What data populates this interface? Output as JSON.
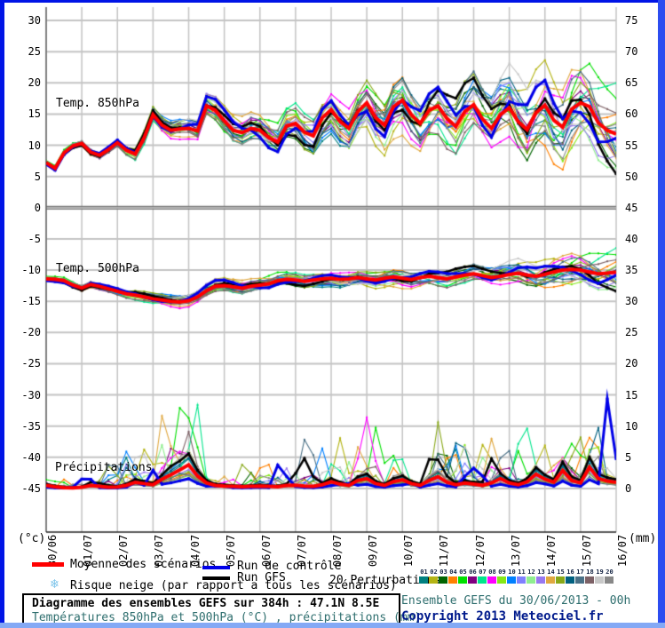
{
  "window": {
    "bg": "#ffffff",
    "border_color": "#0014e6",
    "border_right_color": "#2c4cf0",
    "border_bottom_color": "#84a9f5"
  },
  "chart_data": {
    "type": "line",
    "title": "Diagramme des ensembles GEFS sur 384h : 47.1N 8.5E",
    "subtitle": "Températures 850hPa et 500hPa (°C) , précipitations (mm)",
    "x_dates": [
      "30/06",
      "01/07",
      "02/07",
      "03/07",
      "04/07",
      "05/07",
      "06/07",
      "07/07",
      "08/07",
      "09/07",
      "10/07",
      "11/07",
      "12/07",
      "13/07",
      "14/07",
      "15/07",
      "16/07"
    ],
    "left_axis": {
      "unit_label": "(°c)",
      "ticks": [
        30,
        25,
        20,
        15,
        10,
        5,
        0,
        -5,
        -10,
        -15,
        -20,
        -25,
        -30,
        -35,
        -40,
        -45
      ],
      "range_note": "temperature °C"
    },
    "right_axis": {
      "unit_label": "(mm)",
      "ticks": [
        75,
        70,
        65,
        60,
        55,
        50,
        45,
        40,
        35,
        30,
        25,
        20,
        15,
        10,
        5,
        0
      ],
      "range_note": "precipitation mm"
    },
    "grid": true,
    "panels": [
      {
        "name": "temp850",
        "label": "Temp. 850hPa",
        "axis": "left",
        "mean": [
          7.2,
          6.3,
          8.8,
          9.9,
          10.3,
          8.9,
          8.4,
          9.3,
          10.4,
          9.2,
          8.6,
          11.2,
          14.9,
          13.2,
          12.4,
          12.6,
          12.7,
          12.3,
          16.3,
          15.6,
          13.9,
          12.4,
          12.0,
          12.7,
          12.4,
          11.2,
          10.5,
          13.1,
          13.5,
          12.1,
          11.5,
          14.4,
          15.7,
          13.8,
          12.7,
          15.4,
          16.8,
          14.4,
          13.2,
          16.2,
          17.2,
          14.9,
          13.5,
          15.6,
          16.3,
          14.3,
          13.0,
          15.4,
          16.5,
          14.2,
          12.7,
          14.9,
          16.0,
          13.8,
          12.5,
          15.2,
          16.4,
          14.0,
          12.9,
          15.8,
          16.8,
          16.2,
          13.6,
          12.4,
          11.8
        ],
        "spread": [
          0.25,
          0.5,
          1.2,
          1.8,
          2.4,
          3.0,
          3.5,
          4.2,
          5.0
        ]
      },
      {
        "name": "temp500",
        "label": "Temp. 500hPa",
        "axis": "left",
        "mean": [
          -11.4,
          -11.5,
          -11.7,
          -12.4,
          -12.9,
          -12.3,
          -12.6,
          -13.0,
          -13.4,
          -13.8,
          -14.0,
          -14.3,
          -14.6,
          -14.8,
          -15.0,
          -15.1,
          -14.9,
          -14.3,
          -13.3,
          -12.6,
          -12.5,
          -12.7,
          -12.9,
          -12.6,
          -12.4,
          -12.2,
          -11.7,
          -11.5,
          -11.6,
          -11.8,
          -11.6,
          -11.4,
          -11.3,
          -11.5,
          -11.4,
          -11.2,
          -11.4,
          -11.6,
          -11.3,
          -11.1,
          -11.3,
          -11.5,
          -11.2,
          -11.0,
          -11.2,
          -11.4,
          -11.1,
          -10.8,
          -10.6,
          -10.9,
          -11.2,
          -11.0,
          -10.7,
          -10.5,
          -10.8,
          -11.0,
          -10.7,
          -10.3,
          -10.0,
          -9.9,
          -10.0,
          -10.3,
          -10.6,
          -10.5,
          -10.3
        ],
        "spread": [
          0.3,
          0.5,
          0.7,
          0.8,
          0.8,
          0.9,
          1.0,
          1.4,
          2.4
        ]
      },
      {
        "name": "precip",
        "label": "Précipitations",
        "axis": "right",
        "mean": [
          0.5,
          0.3,
          0.15,
          0.1,
          0.2,
          0.5,
          0.35,
          0.2,
          0.25,
          0.5,
          1.0,
          0.8,
          0.6,
          1.5,
          2.2,
          3.0,
          3.8,
          2.0,
          0.9,
          0.5,
          0.4,
          0.35,
          0.3,
          0.35,
          0.4,
          0.35,
          0.3,
          0.5,
          0.55,
          0.4,
          0.35,
          0.6,
          1.1,
          0.7,
          0.5,
          1.3,
          1.6,
          0.8,
          0.5,
          1.1,
          1.4,
          0.8,
          0.5,
          1.3,
          1.9,
          1.0,
          0.6,
          0.9,
          0.7,
          0.5,
          0.9,
          1.6,
          0.9,
          0.6,
          1.1,
          2.3,
          1.5,
          1.0,
          2.9,
          1.3,
          0.9,
          3.4,
          1.6,
          1.2,
          1.0
        ],
        "spread": [
          0.3,
          1.0,
          2.5,
          0.8,
          1.5,
          1.8,
          1.5,
          2.5,
          3.5
        ]
      }
    ],
    "series_styles": {
      "mean": {
        "color": "#ff0000",
        "width": 4
      },
      "control": {
        "color": "#0000e8",
        "width": 3,
        "seed": 31
      },
      "gfs": {
        "color": "#000000",
        "width": 2.5,
        "seed": 32
      }
    },
    "perturbations": [
      {
        "num": "01",
        "color": "#008080",
        "seed": 101
      },
      {
        "num": "02",
        "color": "#b4b414",
        "seed": 102
      },
      {
        "num": "03",
        "color": "#006400",
        "seed": 103
      },
      {
        "num": "04",
        "color": "#ff8000",
        "seed": 104
      },
      {
        "num": "05",
        "color": "#00e000",
        "seed": 105
      },
      {
        "num": "06",
        "color": "#800080",
        "seed": 106
      },
      {
        "num": "07",
        "color": "#00e68c",
        "seed": 107
      },
      {
        "num": "08",
        "color": "#ff00ff",
        "seed": 108
      },
      {
        "num": "09",
        "color": "#86e817",
        "seed": 109
      },
      {
        "num": "10",
        "color": "#0080ff",
        "seed": 110
      },
      {
        "num": "11",
        "color": "#8080ff",
        "seed": 111
      },
      {
        "num": "12",
        "color": "#90ee90",
        "seed": 112
      },
      {
        "num": "13",
        "color": "#9878f0",
        "seed": 113
      },
      {
        "num": "14",
        "color": "#e0a840",
        "seed": 114
      },
      {
        "num": "15",
        "color": "#88a818",
        "seed": 115
      },
      {
        "num": "16",
        "color": "#006080",
        "seed": 116
      },
      {
        "num": "17",
        "color": "#4a7086",
        "seed": 117
      },
      {
        "num": "18",
        "color": "#7d6166",
        "seed": 118
      },
      {
        "num": "19",
        "color": "#c8c8c8",
        "seed": 119
      },
      {
        "num": "20",
        "color": "#888888",
        "seed": 120
      }
    ]
  },
  "legend": {
    "mean_label": "Moyenne des scénarios",
    "control_label": "Run de contrôle",
    "gfs_label": "Run GFS",
    "perturbations_label": "20 Perturbations",
    "snow_label": "Risque neige (par rapport a tous les scénarios)",
    "snow_icon_color": "#7cc4ea",
    "number_color": "#102040"
  },
  "footer": {
    "title": "Diagramme des ensembles GEFS sur 384h : 47.1N 8.5E",
    "subtitle": "Températures 850hPa et 500hPa (°C) , précipitations (mm)",
    "run_info": "Ensemble GEFS du 30/06/2013 - 00h",
    "copyright": "Copyright 2013 Meteociel.fr",
    "title_color": "#000000",
    "subtitle_color": "#2e6e6e",
    "run_info_color": "#2e6e6e",
    "copyright_color": "#001a8c"
  }
}
